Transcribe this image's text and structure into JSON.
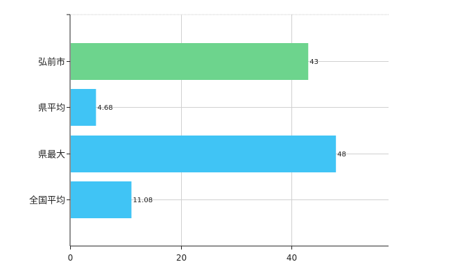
{
  "chart_data": {
    "type": "bar",
    "orientation": "horizontal",
    "title": "",
    "xlabel": "",
    "ylabel": "",
    "categories": [
      "弘前市",
      "県平均",
      "県最大",
      "全国平均"
    ],
    "values": [
      43,
      4.68,
      48,
      11.08
    ],
    "data_labels": [
      "43",
      "4.68",
      "48",
      "11.08"
    ],
    "colors": [
      "#6dd48d",
      "#40c4f5",
      "#40c4f5",
      "#40c4f5"
    ],
    "xlim": [
      0,
      57.5
    ],
    "x_ticks": [
      0,
      20,
      40
    ],
    "x_tick_labels": [
      "0",
      "20",
      "40"
    ],
    "grid": true,
    "legend": "none"
  }
}
